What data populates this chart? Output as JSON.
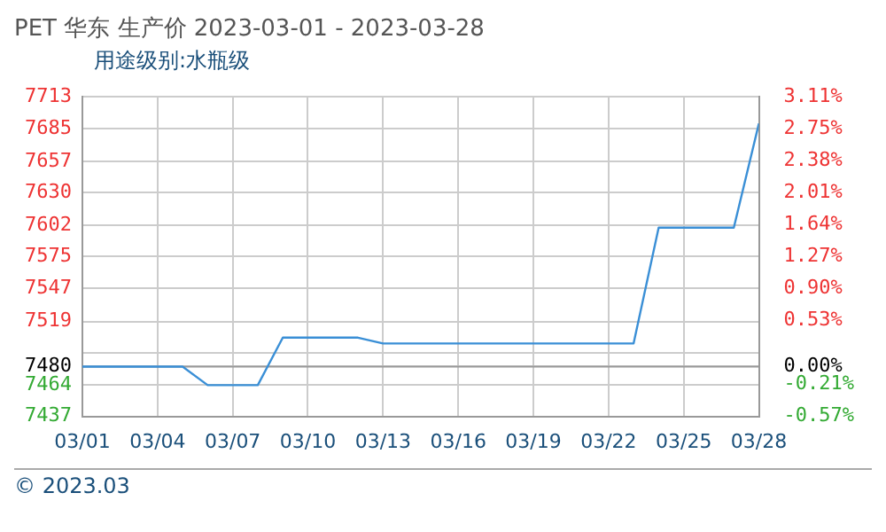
{
  "chart_data": {
    "type": "line",
    "title": "PET 华东 生产价 2023-03-01 - 2023-03-28",
    "subtitle": "用途级别:水瓶级",
    "x": [
      "--03-01",
      "--03-02",
      "--03-03",
      "--03-04",
      "--03-05",
      "--03-06",
      "--03-07",
      "--03-08",
      "--03-09",
      "--03-10",
      "--03-11",
      "--03-12",
      "--03-13",
      "--03-14",
      "--03-15",
      "--03-16",
      "--03-17",
      "--03-18",
      "--03-19",
      "--03-20",
      "--03-21",
      "--03-22",
      "--03-23",
      "--03-24",
      "--03-25",
      "--03-26",
      "--03-27",
      "--03-28"
    ],
    "series": [
      {
        "color": "#3a8fd6",
        "values": [
          7480,
          7480,
          7480,
          7480,
          7480,
          7464,
          7464,
          7464,
          7505,
          7505,
          7505,
          7505,
          7500,
          7500,
          7500,
          7500,
          7500,
          7500,
          7500,
          7500,
          7500,
          7500,
          7500,
          7600,
          7600,
          7600,
          7600,
          7690
        ]
      }
    ],
    "xlim": [
      "--03-01",
      "--03-28"
    ],
    "xticks": [
      {
        "value": "--03-01",
        "label": "03/01"
      },
      {
        "value": "--03-04",
        "label": "03/04"
      },
      {
        "value": "--03-07",
        "label": "03/07"
      },
      {
        "value": "--03-10",
        "label": "03/10"
      },
      {
        "value": "--03-13",
        "label": "03/13"
      },
      {
        "value": "--03-16",
        "label": "03/16"
      },
      {
        "value": "--03-19",
        "label": "03/19"
      },
      {
        "value": "--03-22",
        "label": "03/22"
      },
      {
        "value": "--03-25",
        "label": "03/25"
      },
      {
        "value": "--03-28",
        "label": "03/28"
      }
    ],
    "ylim": [
      7437,
      7713
    ],
    "yticks": [
      7437,
      7464,
      7480,
      {
        "value": 7492.2,
        "label": null
      },
      7519,
      {
        "value": 7547.4,
        "label": "7547"
      },
      7575,
      7602,
      {
        "value": 7630.2,
        "label": "7630"
      },
      7657,
      {
        "value": 7685.4,
        "label": "7685"
      },
      7713
    ],
    "y2lim": [
      -0.575,
      3.115
    ],
    "y2ticks": [
      {
        "value": -0.575,
        "label": "-0.57%"
      },
      {
        "value": -0.206,
        "label": "-0.21%"
      },
      {
        "value": 0,
        "label": "0.00%"
      },
      {
        "value": 0.163,
        "label": null
      },
      {
        "value": 0.532,
        "label": "0.53%"
      },
      {
        "value": 0.901,
        "label": "0.90%"
      },
      {
        "value": 1.27,
        "label": "1.27%"
      },
      {
        "value": 1.639,
        "label": "1.64%"
      },
      {
        "value": 2.008,
        "label": "2.01%"
      },
      {
        "value": 2.377,
        "label": "2.38%"
      },
      {
        "value": 2.746,
        "label": "2.75%"
      },
      {
        "value": 3.115,
        "label": "3.11%"
      }
    ],
    "ref_lines": [
      {
        "axis": "y",
        "value": 7480,
        "color": "#999999"
      }
    ],
    "grid": true,
    "legend": false,
    "marker": "none",
    "line_style": "solid",
    "annotations": [
      "© 2023.03"
    ]
  }
}
